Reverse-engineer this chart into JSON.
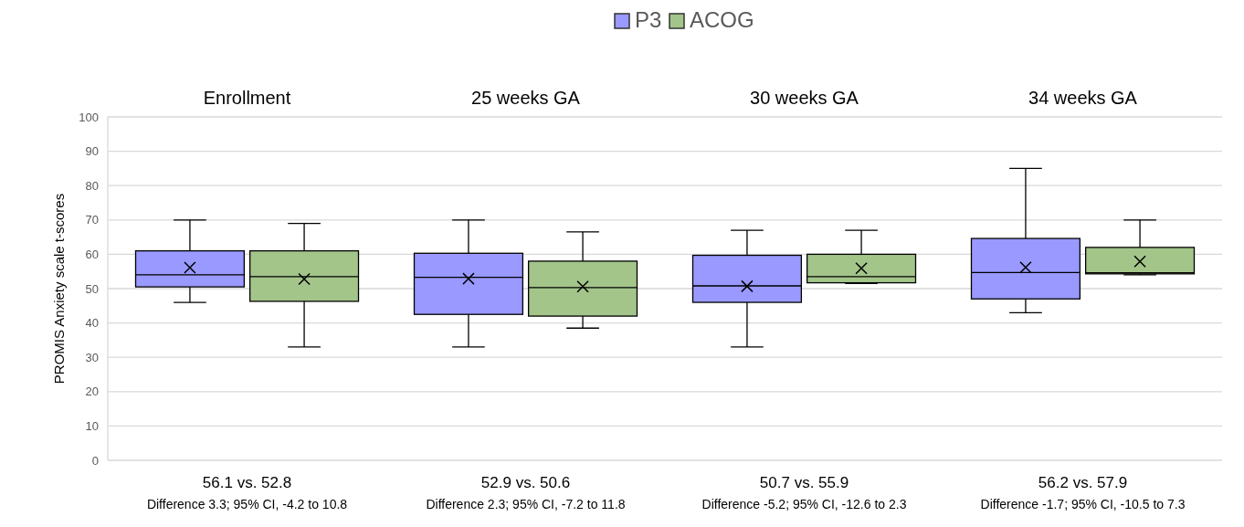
{
  "chart_data": {
    "type": "box",
    "ylabel": "PROMIS Anxiety scale t-scores",
    "categories": [
      "Enrollment",
      "25 weeks GA",
      "30 weeks GA",
      "34 weeks GA"
    ],
    "series": [
      {
        "name": "P3",
        "color": "#9999ff",
        "boxes": [
          {
            "low": 46,
            "q1": 50.5,
            "median": 54,
            "q3": 61,
            "high": 70,
            "mean": 56.1
          },
          {
            "low": 33,
            "q1": 42.5,
            "median": 53.3,
            "q3": 60.3,
            "high": 70,
            "mean": 52.9
          },
          {
            "low": 33,
            "q1": 46,
            "median": 50.8,
            "q3": 59.7,
            "high": 67,
            "mean": 50.7
          },
          {
            "low": 43,
            "q1": 47,
            "median": 54.7,
            "q3": 64.6,
            "high": 85,
            "mean": 56.2
          }
        ]
      },
      {
        "name": "ACOG",
        "color": "#a3c58a",
        "boxes": [
          {
            "low": 33,
            "q1": 46.3,
            "median": 53.5,
            "q3": 61,
            "high": 69,
            "mean": 52.8
          },
          {
            "low": 38.5,
            "q1": 42,
            "median": 50.3,
            "q3": 58,
            "high": 66.5,
            "mean": 50.6
          },
          {
            "low": 51.5,
            "q1": 51.7,
            "median": 53.5,
            "q3": 60,
            "high": 67,
            "mean": 55.9
          },
          {
            "low": 54,
            "q1": 54.3,
            "median": 54.6,
            "q3": 62,
            "high": 70,
            "mean": 57.9
          }
        ]
      }
    ],
    "ylim": [
      0,
      100
    ],
    "yticks": [
      0,
      10,
      20,
      30,
      40,
      50,
      60,
      70,
      80,
      90,
      100
    ],
    "grid": "y",
    "legend": "top",
    "marker": "cross",
    "annotations": [
      "56.1 vs. 52.8",
      "Difference 3.3; 95% CI, -4.2 to 10.8",
      "52.9 vs. 50.6",
      "Difference 2.3; 95% CI, -7.2 to 11.8",
      "50.7 vs. 55.9",
      "Difference -5.2; 95% CI, -12.6 to 2.3",
      "56.2 vs. 57.9",
      "Difference -1.7; 95% CI, -10.5 to 7.3"
    ]
  }
}
